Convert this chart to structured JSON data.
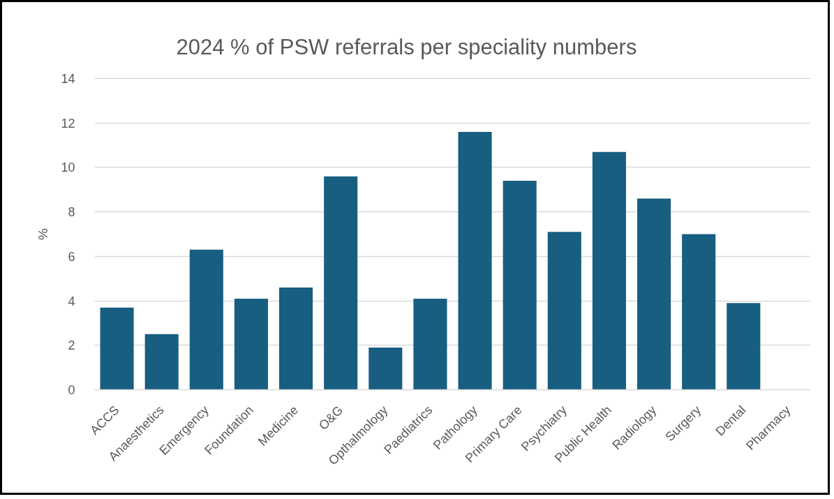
{
  "chart_data": {
    "type": "bar",
    "title": "2024 % of PSW referrals per speciality numbers",
    "ylabel": "%",
    "categories": [
      "ACCS",
      "Anaesthetics",
      "Emergency",
      "Foundation",
      "Medicine",
      "O&G",
      "Opthalmology",
      "Paediatrics",
      "Pathology",
      "Primary Care",
      "Psychiatry",
      "Public Health",
      "Radiology",
      "Surgery",
      "Dental",
      "Pharmacy"
    ],
    "values": [
      3.7,
      2.5,
      6.3,
      4.1,
      4.6,
      9.6,
      1.9,
      4.1,
      11.6,
      9.4,
      7.1,
      10.7,
      8.6,
      7.0,
      3.9,
      0
    ],
    "color": "#185e80",
    "ylim": [
      0,
      14
    ],
    "yticks": [
      0,
      2,
      4,
      6,
      8,
      10,
      12,
      14
    ],
    "grid": "y"
  }
}
